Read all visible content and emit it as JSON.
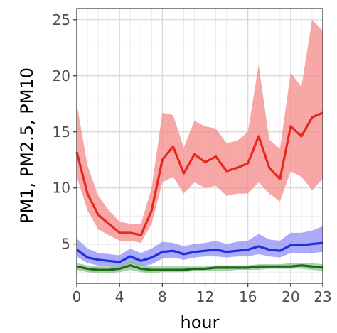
{
  "chart_data": {
    "type": "line",
    "xlabel": "hour",
    "ylabel": "PM1, PM2.5, PM10",
    "xlim": [
      0,
      23
    ],
    "ylim": [
      1.5,
      26
    ],
    "x_ticks": [
      0,
      4,
      8,
      12,
      16,
      20,
      23
    ],
    "y_ticks": [
      5,
      10,
      15,
      20,
      25
    ],
    "grid": true,
    "legend": "none",
    "x": [
      0,
      1,
      2,
      3,
      4,
      5,
      6,
      7,
      8,
      9,
      10,
      11,
      12,
      13,
      14,
      15,
      16,
      17,
      18,
      19,
      20,
      21,
      22,
      23
    ],
    "series": [
      {
        "color": "#e8281e",
        "band_color": "#f58a8a",
        "values": [
          13.2,
          9.5,
          7.6,
          6.8,
          6.0,
          6.0,
          5.8,
          8.0,
          12.5,
          13.7,
          11.3,
          13.0,
          12.3,
          12.8,
          11.5,
          11.8,
          12.2,
          14.6,
          11.8,
          10.8,
          15.5,
          14.6,
          16.3,
          16.7
        ],
        "lower": [
          11.0,
          8.0,
          6.3,
          5.8,
          5.3,
          5.3,
          5.1,
          6.8,
          10.5,
          11.0,
          9.5,
          10.5,
          10.0,
          10.2,
          9.3,
          9.5,
          9.5,
          10.5,
          9.5,
          8.8,
          11.5,
          11.0,
          9.8,
          10.8
        ],
        "upper": [
          17.5,
          12.0,
          9.3,
          8.0,
          7.0,
          6.8,
          6.8,
          10.0,
          16.7,
          16.5,
          13.6,
          16.0,
          15.5,
          15.3,
          14.0,
          14.2,
          15.0,
          21.0,
          14.3,
          13.5,
          20.3,
          19.0,
          25.0,
          24.0
        ]
      },
      {
        "color": "#1f2ee0",
        "band_color": "#8f8ff5",
        "values": [
          4.5,
          3.8,
          3.6,
          3.5,
          3.4,
          3.9,
          3.5,
          3.8,
          4.3,
          4.4,
          4.1,
          4.3,
          4.4,
          4.5,
          4.3,
          4.4,
          4.5,
          4.8,
          4.5,
          4.4,
          4.9,
          4.9,
          5.0,
          5.1
        ],
        "lower": [
          3.9,
          3.3,
          3.1,
          3.0,
          2.9,
          3.3,
          3.0,
          3.2,
          3.7,
          3.8,
          3.6,
          3.8,
          3.9,
          3.9,
          3.8,
          3.9,
          3.9,
          4.1,
          3.9,
          3.8,
          4.2,
          4.2,
          4.2,
          4.3
        ],
        "upper": [
          5.5,
          4.6,
          4.2,
          4.1,
          4.0,
          4.6,
          4.2,
          4.6,
          5.2,
          5.1,
          4.8,
          5.0,
          5.1,
          5.3,
          5.0,
          5.2,
          5.3,
          5.9,
          5.4,
          5.3,
          6.0,
          6.0,
          6.2,
          6.6
        ]
      },
      {
        "color": "#1a6b1a",
        "band_color": "#8cc08c",
        "values": [
          3.0,
          2.8,
          2.7,
          2.7,
          2.8,
          3.1,
          2.8,
          2.7,
          2.7,
          2.7,
          2.7,
          2.8,
          2.8,
          2.9,
          2.9,
          2.9,
          2.9,
          3.0,
          3.0,
          3.0,
          3.0,
          3.1,
          3.0,
          2.9
        ],
        "lower": [
          2.7,
          2.5,
          2.4,
          2.4,
          2.5,
          2.7,
          2.5,
          2.4,
          2.5,
          2.5,
          2.5,
          2.6,
          2.6,
          2.6,
          2.6,
          2.7,
          2.7,
          2.7,
          2.8,
          2.8,
          2.8,
          2.8,
          2.7,
          2.6
        ],
        "upper": [
          3.3,
          3.1,
          3.0,
          3.0,
          3.1,
          3.5,
          3.2,
          3.0,
          3.0,
          3.0,
          3.0,
          3.0,
          3.0,
          3.1,
          3.1,
          3.1,
          3.1,
          3.2,
          3.2,
          3.2,
          3.3,
          3.3,
          3.3,
          3.2
        ]
      }
    ]
  }
}
